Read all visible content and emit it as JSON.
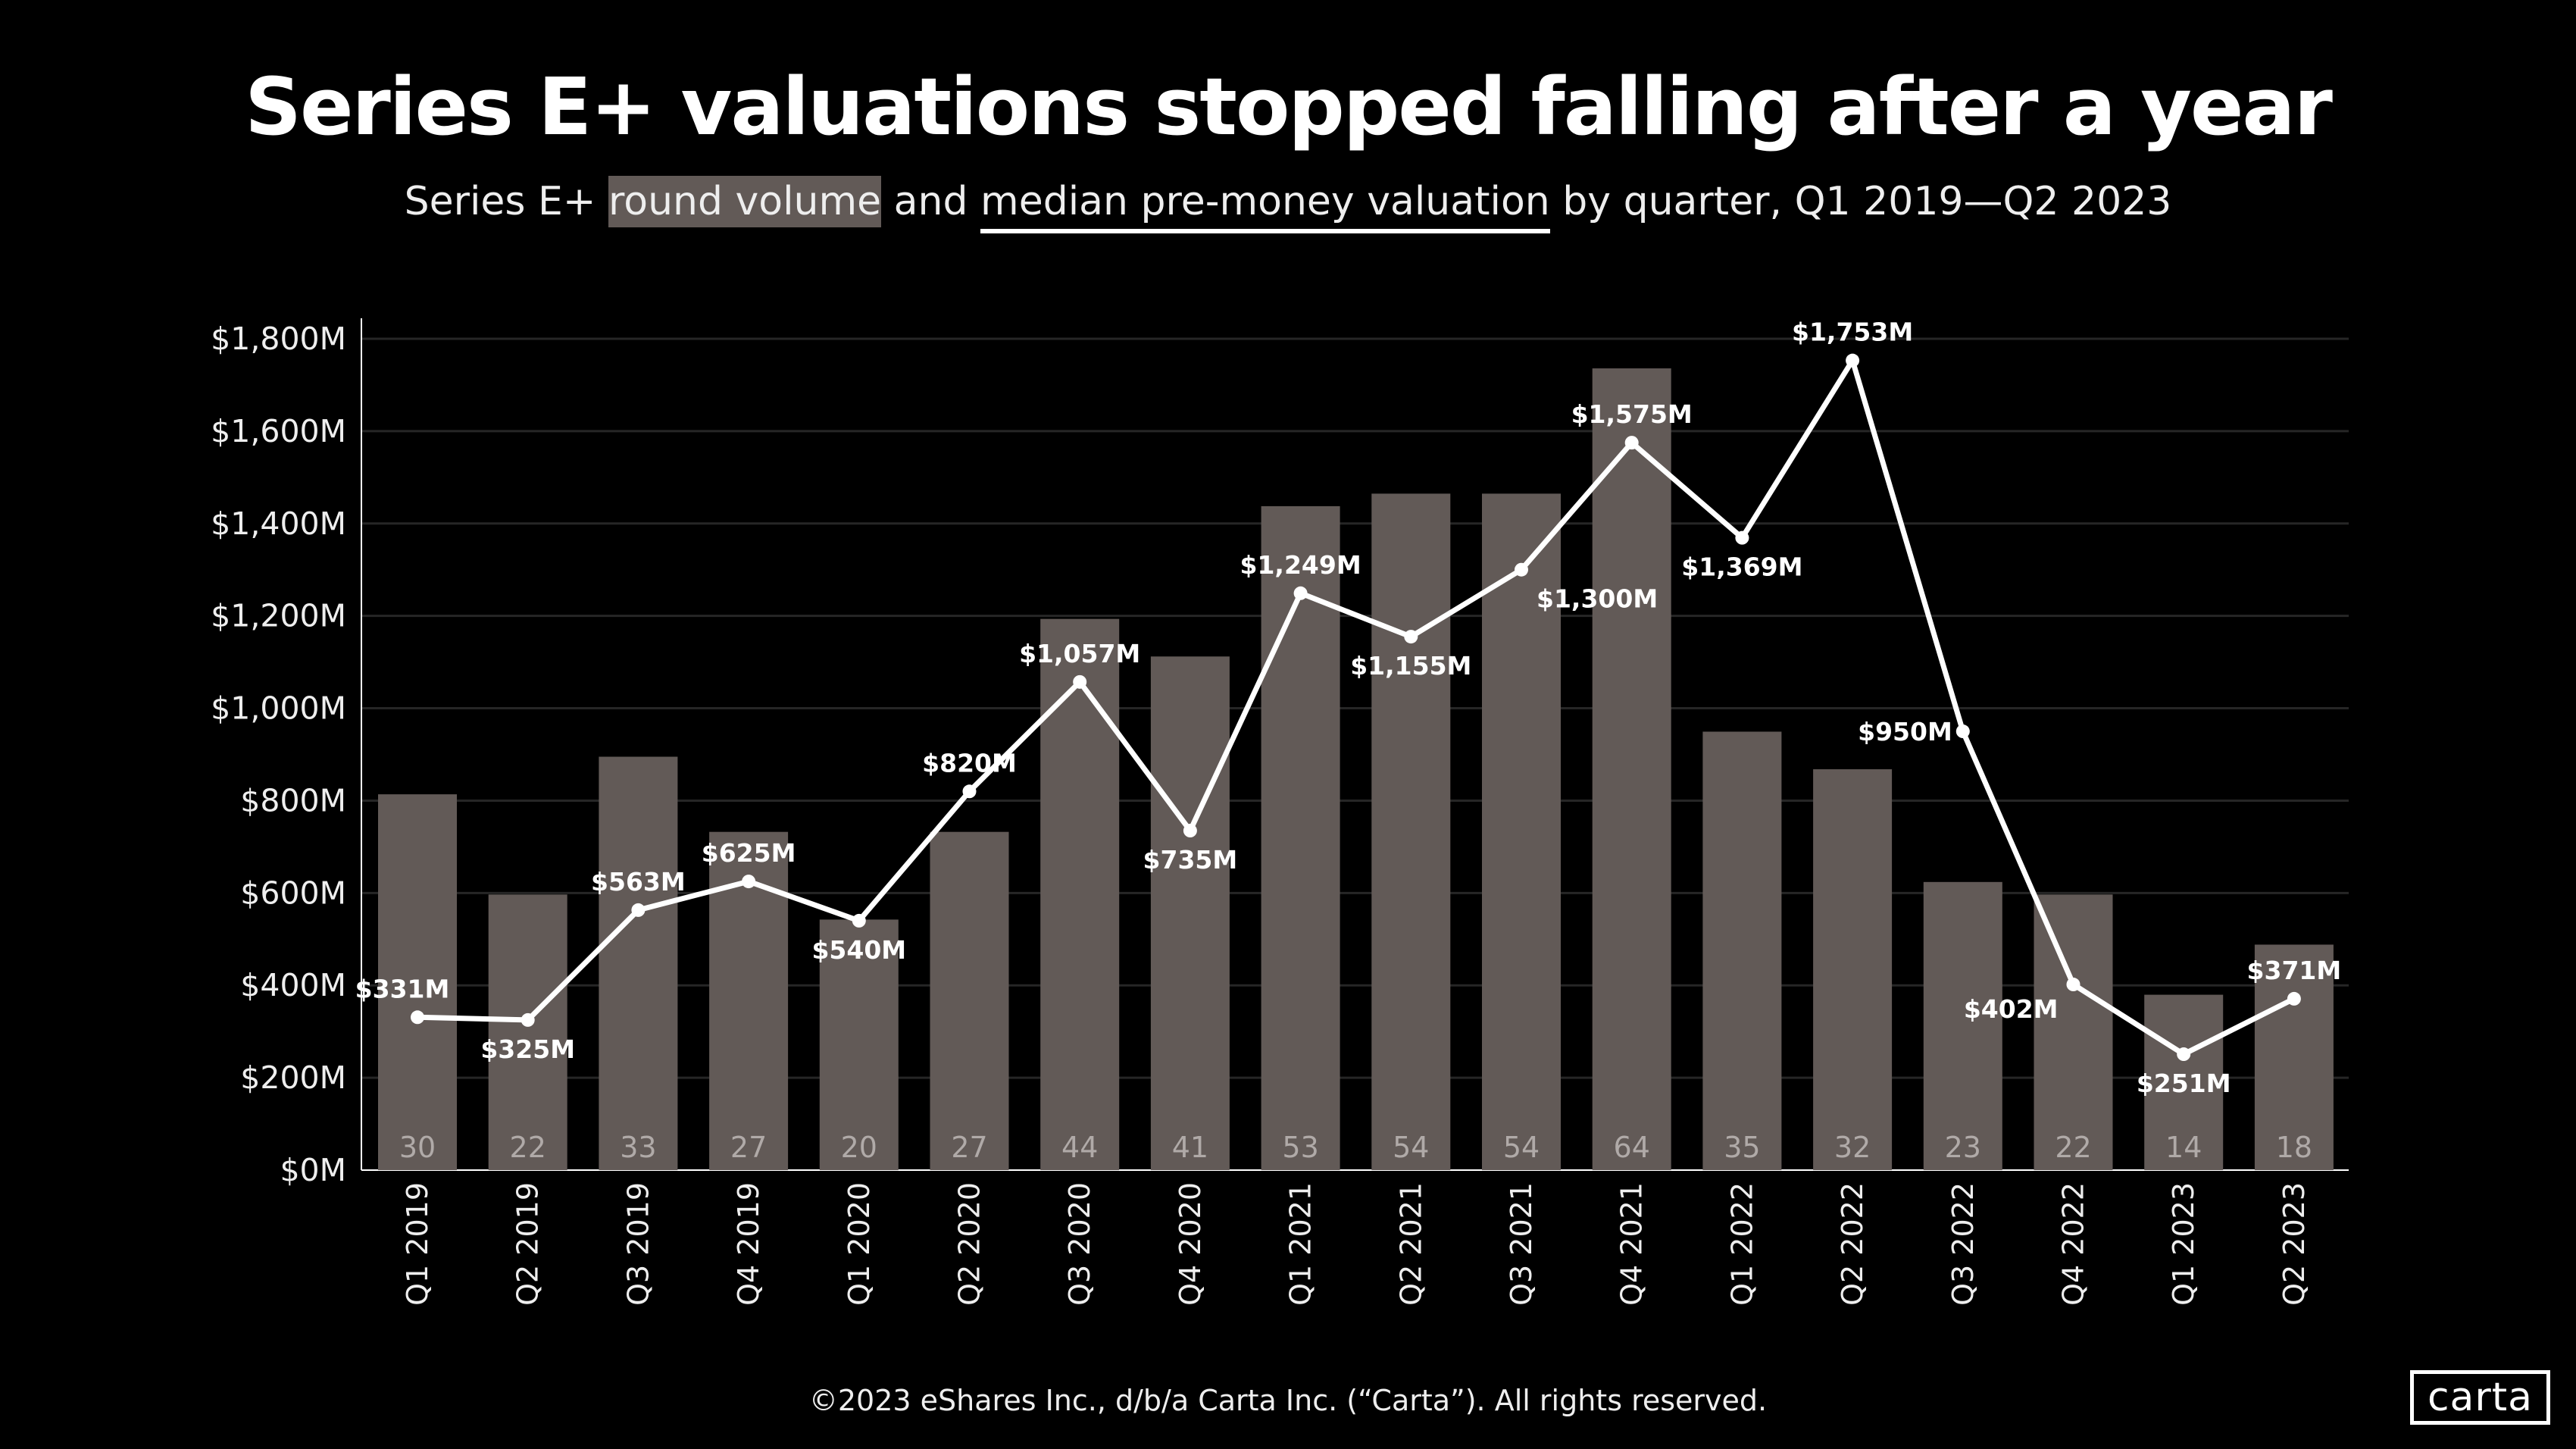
{
  "title": "Series E+ valuations stopped falling after a year",
  "subtitle": {
    "part1": "Series E+ ",
    "highlight_bars": "round volume",
    "part2": " and ",
    "highlight_line": "median pre-money valuation",
    "part3": " by quarter, Q1 2019—Q2 2023"
  },
  "footer": "©2023 eShares Inc., d/b/a Carta Inc. (“Carta”). All rights reserved.",
  "logo": "carta",
  "colors": {
    "background": "#000000",
    "bars": "#625a57",
    "line": "#ffffff",
    "count_labels": "#b0aaa8"
  },
  "chart_data": {
    "type": "bar+line",
    "categories": [
      "Q1 2019",
      "Q2 2019",
      "Q3 2019",
      "Q4 2019",
      "Q1 2020",
      "Q2 2020",
      "Q3 2020",
      "Q4 2020",
      "Q1 2021",
      "Q2 2021",
      "Q3 2021",
      "Q4 2021",
      "Q1 2022",
      "Q2 2022",
      "Q3 2022",
      "Q4 2022",
      "Q1 2023",
      "Q2 2023"
    ],
    "series": [
      {
        "kind": "bar",
        "axis": "secondary (hidden)",
        "values": [
          30,
          22,
          33,
          27,
          20,
          27,
          44,
          41,
          53,
          54,
          54,
          64,
          35,
          32,
          23,
          22,
          14,
          18
        ]
      },
      {
        "kind": "line",
        "axis": "primary",
        "values": [
          331,
          325,
          563,
          625,
          540,
          820,
          1057,
          735,
          1249,
          1155,
          1300,
          1575,
          1369,
          1753,
          950,
          402,
          251,
          371
        ],
        "labels": [
          "$331M",
          "$325M",
          "$563M",
          "$625M",
          "$540M",
          "$820M",
          "$1,057M",
          "$735M",
          "$1,249M",
          "$1,155M",
          "$1,300M",
          "$1,575M",
          "$1,369M",
          "$1,753M",
          "$950M",
          "$402M",
          "$251M",
          "$371M"
        ]
      }
    ],
    "y_ticks": [
      0,
      200,
      400,
      600,
      800,
      1000,
      1200,
      1400,
      1600,
      1800
    ],
    "y_tick_labels": [
      "$0M",
      "$200M",
      "$400M",
      "$600M",
      "$800M",
      "$1,000M",
      "$1,200M",
      "$1,400M",
      "$1,600M",
      "$1,800M"
    ],
    "ylim": [
      0,
      1800
    ],
    "grid": true,
    "legend": "none"
  }
}
